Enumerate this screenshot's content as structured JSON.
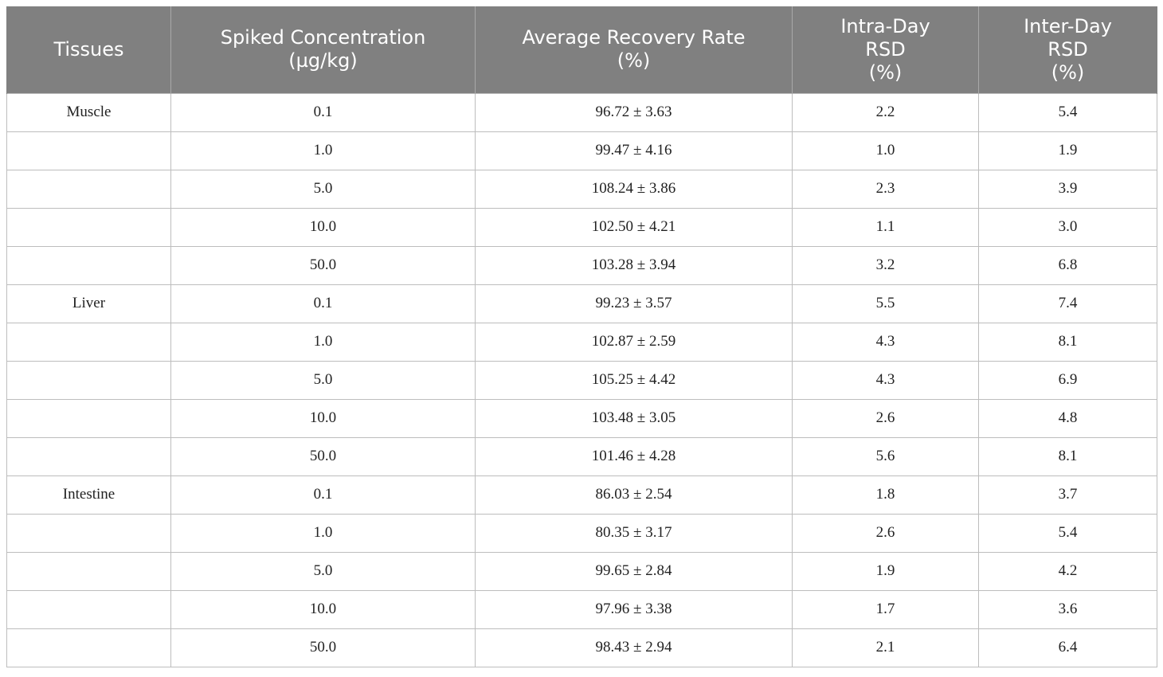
{
  "table": {
    "headers": [
      {
        "lines": [
          "Tissues"
        ]
      },
      {
        "lines": [
          "Spiked Concentration",
          "(µg/kg)"
        ]
      },
      {
        "lines": [
          "Average Recovery Rate",
          "(%)"
        ]
      },
      {
        "lines": [
          "Intra-Day",
          "RSD",
          "(%)"
        ]
      },
      {
        "lines": [
          "Inter-Day",
          "RSD",
          "(%)"
        ]
      }
    ],
    "rows": [
      {
        "tissue": "Muscle",
        "conc": "0.1",
        "recovery": "96.72 ± 3.63",
        "intra": "2.2",
        "inter": "5.4"
      },
      {
        "tissue": "",
        "conc": "1.0",
        "recovery": "99.47 ± 4.16",
        "intra": "1.0",
        "inter": "1.9"
      },
      {
        "tissue": "",
        "conc": "5.0",
        "recovery": "108.24 ± 3.86",
        "intra": "2.3",
        "inter": "3.9"
      },
      {
        "tissue": "",
        "conc": "10.0",
        "recovery": "102.50 ± 4.21",
        "intra": "1.1",
        "inter": "3.0"
      },
      {
        "tissue": "",
        "conc": "50.0",
        "recovery": "103.28 ± 3.94",
        "intra": "3.2",
        "inter": "6.8"
      },
      {
        "tissue": "Liver",
        "conc": "0.1",
        "recovery": "99.23 ± 3.57",
        "intra": "5.5",
        "inter": "7.4"
      },
      {
        "tissue": "",
        "conc": "1.0",
        "recovery": "102.87 ± 2.59",
        "intra": "4.3",
        "inter": "8.1"
      },
      {
        "tissue": "",
        "conc": "5.0",
        "recovery": "105.25 ± 4.42",
        "intra": "4.3",
        "inter": "6.9"
      },
      {
        "tissue": "",
        "conc": "10.0",
        "recovery": "103.48 ± 3.05",
        "intra": "2.6",
        "inter": "4.8"
      },
      {
        "tissue": "",
        "conc": "50.0",
        "recovery": "101.46 ± 4.28",
        "intra": "5.6",
        "inter": "8.1"
      },
      {
        "tissue": "Intestine",
        "conc": "0.1",
        "recovery": "86.03 ± 2.54",
        "intra": "1.8",
        "inter": "3.7"
      },
      {
        "tissue": "",
        "conc": "1.0",
        "recovery": "80.35 ± 3.17",
        "intra": "2.6",
        "inter": "5.4"
      },
      {
        "tissue": "",
        "conc": "5.0",
        "recovery": "99.65 ± 2.84",
        "intra": "1.9",
        "inter": "4.2"
      },
      {
        "tissue": "",
        "conc": "10.0",
        "recovery": "97.96 ± 3.38",
        "intra": "1.7",
        "inter": "3.6"
      },
      {
        "tissue": "",
        "conc": "50.0",
        "recovery": "98.43 ± 2.94",
        "intra": "2.1",
        "inter": "6.4"
      }
    ]
  }
}
